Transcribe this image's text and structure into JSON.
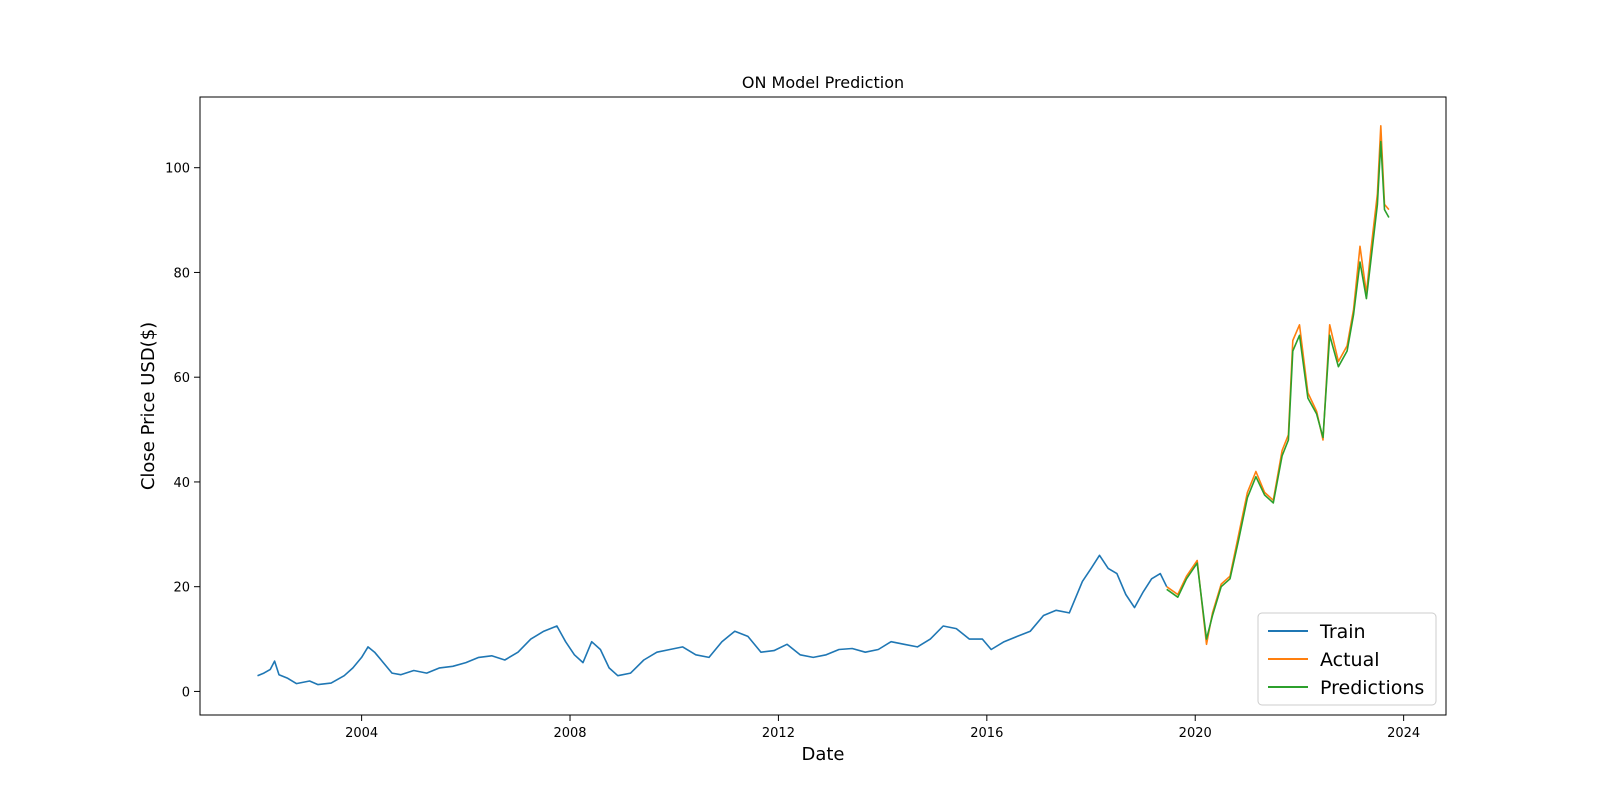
{
  "chart_data": {
    "type": "line",
    "title": "ON Model Prediction",
    "xlabel": "Date",
    "ylabel": "Close Price USD($)",
    "xlim": [
      "2000-11-24",
      "2024-10-24"
    ],
    "ylim": [
      -4.5,
      113.5
    ],
    "x_ticks": [
      "2004",
      "2008",
      "2012",
      "2016",
      "2020",
      "2024"
    ],
    "y_ticks": [
      0,
      20,
      40,
      60,
      80,
      100
    ],
    "grid": false,
    "legend_position": "lower-right",
    "series": [
      {
        "name": "Train",
        "color": "#1f77b4",
        "points": [
          [
            "2002-01-01",
            3.0
          ],
          [
            "2002-02-15",
            3.5
          ],
          [
            "2002-04-01",
            4.2
          ],
          [
            "2002-05-01",
            5.8
          ],
          [
            "2002-06-01",
            3.2
          ],
          [
            "2002-08-01",
            2.5
          ],
          [
            "2002-10-01",
            1.5
          ],
          [
            "2003-01-01",
            2.0
          ],
          [
            "2003-03-01",
            1.3
          ],
          [
            "2003-06-01",
            1.6
          ],
          [
            "2003-09-01",
            3.0
          ],
          [
            "2003-11-01",
            4.5
          ],
          [
            "2004-01-01",
            6.5
          ],
          [
            "2004-02-15",
            8.5
          ],
          [
            "2004-04-01",
            7.5
          ],
          [
            "2004-06-01",
            5.5
          ],
          [
            "2004-08-01",
            3.5
          ],
          [
            "2004-10-01",
            3.2
          ],
          [
            "2005-01-01",
            4.0
          ],
          [
            "2005-04-01",
            3.5
          ],
          [
            "2005-07-01",
            4.5
          ],
          [
            "2005-10-01",
            4.8
          ],
          [
            "2006-01-01",
            5.5
          ],
          [
            "2006-04-01",
            6.5
          ],
          [
            "2006-07-01",
            6.8
          ],
          [
            "2006-10-01",
            6.0
          ],
          [
            "2007-01-01",
            7.5
          ],
          [
            "2007-04-01",
            10.0
          ],
          [
            "2007-07-01",
            11.5
          ],
          [
            "2007-10-01",
            12.5
          ],
          [
            "2007-12-01",
            9.5
          ],
          [
            "2008-02-01",
            7.0
          ],
          [
            "2008-04-01",
            5.5
          ],
          [
            "2008-06-01",
            9.5
          ],
          [
            "2008-08-01",
            8.0
          ],
          [
            "2008-10-01",
            4.5
          ],
          [
            "2008-12-01",
            3.0
          ],
          [
            "2009-03-01",
            3.5
          ],
          [
            "2009-06-01",
            6.0
          ],
          [
            "2009-09-01",
            7.5
          ],
          [
            "2009-12-01",
            8.0
          ],
          [
            "2010-03-01",
            8.5
          ],
          [
            "2010-06-01",
            7.0
          ],
          [
            "2010-09-01",
            6.5
          ],
          [
            "2010-12-01",
            9.5
          ],
          [
            "2011-03-01",
            11.5
          ],
          [
            "2011-06-01",
            10.5
          ],
          [
            "2011-09-01",
            7.5
          ],
          [
            "2011-12-01",
            7.8
          ],
          [
            "2012-03-01",
            9.0
          ],
          [
            "2012-06-01",
            7.0
          ],
          [
            "2012-09-01",
            6.5
          ],
          [
            "2012-12-01",
            7.0
          ],
          [
            "2013-03-01",
            8.0
          ],
          [
            "2013-06-01",
            8.2
          ],
          [
            "2013-09-01",
            7.5
          ],
          [
            "2013-12-01",
            8.0
          ],
          [
            "2014-03-01",
            9.5
          ],
          [
            "2014-06-01",
            9.0
          ],
          [
            "2014-09-01",
            8.5
          ],
          [
            "2014-12-01",
            10.0
          ],
          [
            "2015-03-01",
            12.5
          ],
          [
            "2015-06-01",
            12.0
          ],
          [
            "2015-09-01",
            10.0
          ],
          [
            "2015-12-01",
            10.0
          ],
          [
            "2016-02-01",
            8.0
          ],
          [
            "2016-05-01",
            9.5
          ],
          [
            "2016-08-01",
            10.5
          ],
          [
            "2016-11-01",
            11.5
          ],
          [
            "2017-02-01",
            14.5
          ],
          [
            "2017-05-01",
            15.5
          ],
          [
            "2017-08-01",
            15.0
          ],
          [
            "2017-11-01",
            21.0
          ],
          [
            "2018-01-01",
            23.5
          ],
          [
            "2018-03-01",
            26.0
          ],
          [
            "2018-05-01",
            23.5
          ],
          [
            "2018-07-01",
            22.5
          ],
          [
            "2018-09-01",
            18.5
          ],
          [
            "2018-11-01",
            16.0
          ],
          [
            "2019-01-01",
            19.0
          ],
          [
            "2019-03-01",
            21.5
          ],
          [
            "2019-05-01",
            22.5
          ],
          [
            "2019-06-15",
            20.0
          ]
        ]
      },
      {
        "name": "Actual",
        "color": "#ff7f0e",
        "points": [
          [
            "2019-06-15",
            20.0
          ],
          [
            "2019-09-01",
            18.5
          ],
          [
            "2019-11-01",
            22.0
          ],
          [
            "2020-01-15",
            25.0
          ],
          [
            "2020-03-20",
            9.0
          ],
          [
            "2020-05-01",
            15.0
          ],
          [
            "2020-07-01",
            20.5
          ],
          [
            "2020-09-01",
            22.0
          ],
          [
            "2020-11-01",
            30.0
          ],
          [
            "2021-01-01",
            38.0
          ],
          [
            "2021-03-01",
            42.0
          ],
          [
            "2021-05-01",
            38.0
          ],
          [
            "2021-07-01",
            36.5
          ],
          [
            "2021-09-01",
            46.0
          ],
          [
            "2021-10-15",
            49.0
          ],
          [
            "2021-11-15",
            67.0
          ],
          [
            "2022-01-01",
            70.0
          ],
          [
            "2022-03-01",
            57.0
          ],
          [
            "2022-05-01",
            53.5
          ],
          [
            "2022-06-15",
            48.0
          ],
          [
            "2022-08-01",
            70.0
          ],
          [
            "2022-10-01",
            63.0
          ],
          [
            "2022-12-01",
            66.0
          ],
          [
            "2023-01-15",
            73.0
          ],
          [
            "2023-03-01",
            85.0
          ],
          [
            "2023-04-15",
            76.0
          ],
          [
            "2023-05-15",
            84.0
          ],
          [
            "2023-07-01",
            95.0
          ],
          [
            "2023-07-25",
            108.0
          ],
          [
            "2023-08-20",
            93.0
          ],
          [
            "2023-09-20",
            92.0
          ]
        ]
      },
      {
        "name": "Predictions",
        "color": "#2ca02c",
        "points": [
          [
            "2019-06-15",
            19.5
          ],
          [
            "2019-09-01",
            18.0
          ],
          [
            "2019-11-01",
            21.5
          ],
          [
            "2020-01-15",
            24.5
          ],
          [
            "2020-03-20",
            10.0
          ],
          [
            "2020-05-01",
            14.5
          ],
          [
            "2020-07-01",
            20.0
          ],
          [
            "2020-09-01",
            21.5
          ],
          [
            "2020-11-01",
            29.0
          ],
          [
            "2021-01-01",
            37.0
          ],
          [
            "2021-03-01",
            41.0
          ],
          [
            "2021-05-01",
            37.5
          ],
          [
            "2021-07-01",
            36.0
          ],
          [
            "2021-09-01",
            45.0
          ],
          [
            "2021-10-15",
            48.0
          ],
          [
            "2021-11-15",
            65.0
          ],
          [
            "2022-01-01",
            68.0
          ],
          [
            "2022-03-01",
            56.0
          ],
          [
            "2022-05-01",
            53.0
          ],
          [
            "2022-06-15",
            48.5
          ],
          [
            "2022-08-01",
            68.0
          ],
          [
            "2022-10-01",
            62.0
          ],
          [
            "2022-12-01",
            65.0
          ],
          [
            "2023-01-15",
            72.0
          ],
          [
            "2023-03-01",
            82.0
          ],
          [
            "2023-04-15",
            75.0
          ],
          [
            "2023-05-15",
            82.0
          ],
          [
            "2023-07-01",
            93.0
          ],
          [
            "2023-07-25",
            105.0
          ],
          [
            "2023-08-20",
            92.0
          ],
          [
            "2023-09-20",
            90.5
          ]
        ]
      }
    ]
  }
}
